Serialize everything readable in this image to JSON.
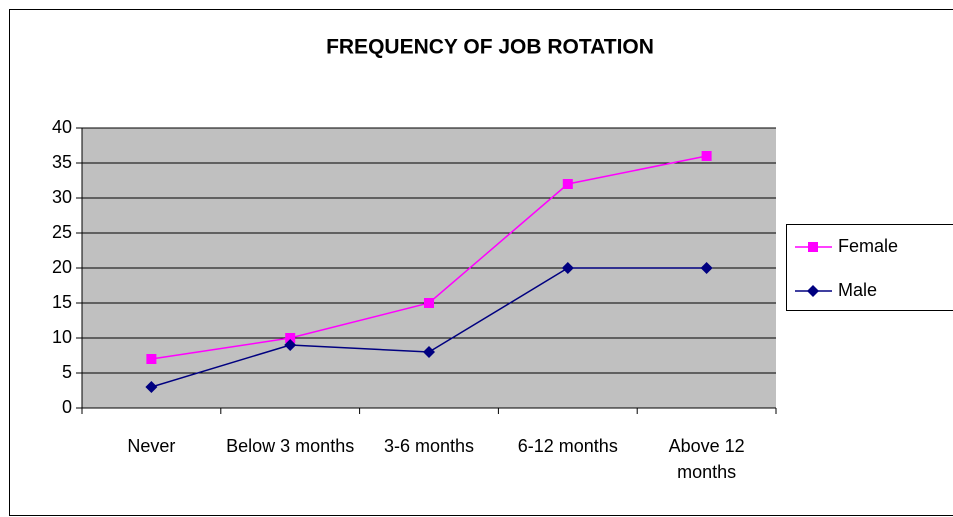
{
  "chart_data": {
    "type": "line",
    "title": "FREQUENCY OF JOB ROTATION",
    "categories": [
      "Never",
      "Below 3 months",
      "3-6 months",
      "6-12 months",
      "Above 12 months"
    ],
    "series": [
      {
        "name": "Female",
        "color": "#ff00ff",
        "marker": "square",
        "values": [
          7,
          10,
          15,
          32,
          36
        ]
      },
      {
        "name": "Male",
        "color": "#000080",
        "marker": "diamond",
        "values": [
          3,
          9,
          8,
          20,
          20
        ]
      }
    ],
    "ylim": [
      0,
      40
    ],
    "yticks": [
      0,
      5,
      10,
      15,
      20,
      25,
      30,
      35,
      40
    ],
    "grid": true,
    "legend": "right"
  }
}
